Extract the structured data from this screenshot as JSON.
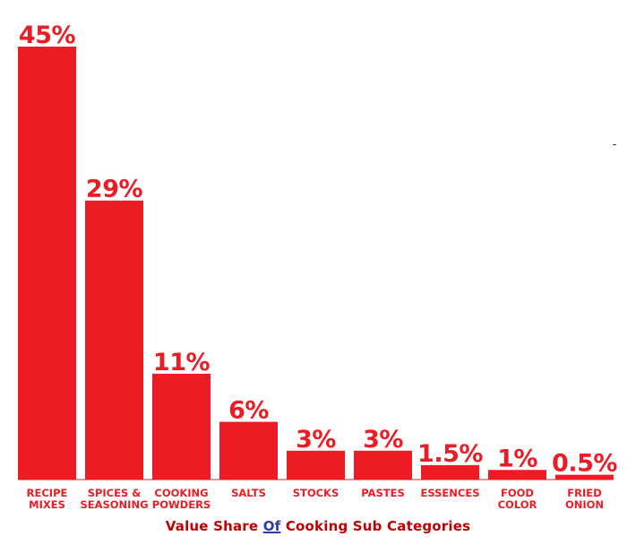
{
  "chart_data": {
    "type": "bar",
    "categories": [
      [
        "RECIPE",
        "MIXES"
      ],
      [
        "SPICES &",
        "SEASONING"
      ],
      [
        "COOKING",
        "POWDERS"
      ],
      [
        "SALTS"
      ],
      [
        "STOCKS"
      ],
      [
        "PASTES"
      ],
      [
        "ESSENCES"
      ],
      [
        "FOOD",
        "COLOR"
      ],
      [
        "FRIED",
        "ONION"
      ]
    ],
    "values": [
      45,
      29,
      11,
      6,
      3,
      3,
      1.5,
      1,
      0.5
    ],
    "value_labels": [
      "45%",
      "29%",
      "11%",
      "6%",
      "3%",
      "3%",
      "1.5%",
      "1%",
      "0.5%"
    ],
    "unit": "%",
    "grid": false,
    "legend": "none"
  },
  "caption": {
    "part1": "Value Share ",
    "part2": "Of",
    "part3": " Cooking Sub Categories"
  },
  "colors": {
    "bar": "#ED1C24",
    "value_label": "#ED1C24",
    "category_label": "#ED1C24",
    "caption": "#C00000",
    "caption_of": "#2F3D9A",
    "baseline": "#ED1C24"
  }
}
